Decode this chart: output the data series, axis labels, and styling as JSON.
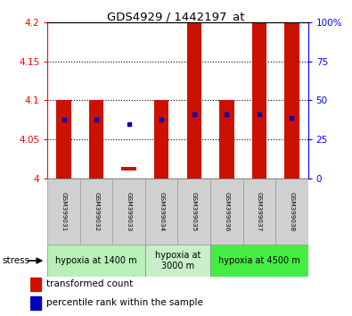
{
  "title": "GDS4929 / 1442197_at",
  "samples": [
    "GSM399031",
    "GSM399032",
    "GSM399033",
    "GSM399034",
    "GSM399035",
    "GSM399036",
    "GSM399037",
    "GSM399038"
  ],
  "red_bar_bottom": [
    4.0,
    4.0,
    4.01,
    4.0,
    4.0,
    4.0,
    4.0,
    4.0
  ],
  "red_bar_top": [
    4.1,
    4.1,
    4.015,
    4.1,
    4.2,
    4.1,
    4.2,
    4.2
  ],
  "blue_dot_y": [
    4.075,
    4.075,
    4.07,
    4.075,
    4.082,
    4.082,
    4.082,
    4.078
  ],
  "ylim_left": [
    4.0,
    4.2
  ],
  "ylim_right": [
    0,
    100
  ],
  "yticks_left": [
    4.0,
    4.05,
    4.1,
    4.15,
    4.2
  ],
  "ytick_labels_left": [
    "4",
    "4.05",
    "4.1",
    "4.15",
    "4.2"
  ],
  "yticks_right": [
    0,
    25,
    50,
    75,
    100
  ],
  "ytick_labels_right": [
    "0",
    "25",
    "50",
    "75",
    "100%"
  ],
  "hlines": [
    4.05,
    4.1,
    4.15
  ],
  "groups": [
    {
      "label": "hypoxia at 1400 m",
      "start": 0,
      "end": 3,
      "color": "#b8f0b8"
    },
    {
      "label": "hypoxia at\n3000 m",
      "start": 3,
      "end": 5,
      "color": "#c8f0c8"
    },
    {
      "label": "hypoxia at 4500 m",
      "start": 5,
      "end": 8,
      "color": "#44ee44"
    }
  ],
  "bar_color": "#cc1100",
  "dot_color": "#0000bb",
  "legend_red_label": "transformed count",
  "legend_blue_label": "percentile rank within the sample",
  "stress_label": "stress",
  "bar_width": 0.45
}
